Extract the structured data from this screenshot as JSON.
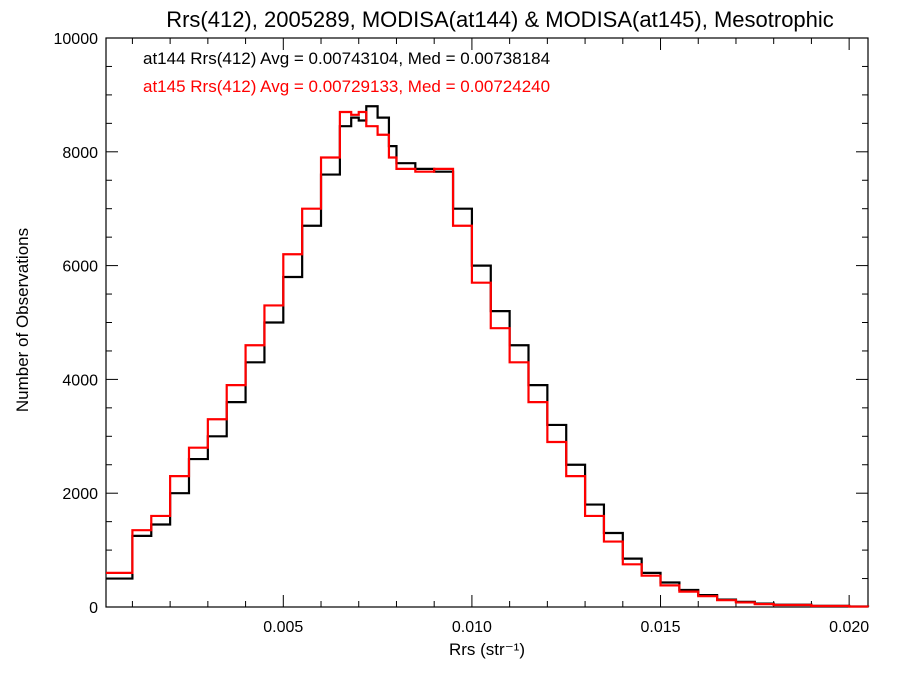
{
  "chart_data": {
    "type": "line",
    "step": true,
    "title": "Rrs(412), 2005289, MODISA(at144) & MODISA(at145), Mesotrophic",
    "xlabel": "Rrs (str⁻¹)",
    "ylabel": "Number of Observations",
    "xlim": [
      0.0003,
      0.0205
    ],
    "ylim": [
      0,
      10000
    ],
    "x_ticks": [
      0.005,
      0.01,
      0.015,
      0.02
    ],
    "x_tick_labels": [
      "0.005",
      "0.010",
      "0.015",
      "0.020"
    ],
    "y_ticks": [
      0,
      2000,
      4000,
      6000,
      8000,
      10000
    ],
    "y_tick_labels": [
      "0",
      "2000",
      "4000",
      "6000",
      "8000",
      "10000"
    ],
    "grid": false,
    "legend_position": "top-left",
    "annotations": [
      {
        "text": "at144 Rrs(412) Avg = 0.00743104, Med = 0.00738184",
        "color": "#000000"
      },
      {
        "text": "at145 Rrs(412) Avg = 0.00729133, Med = 0.00724240",
        "color": "#ff0000"
      }
    ],
    "series": [
      {
        "color": "#000000",
        "x": [
          0.0003,
          0.001,
          0.0015,
          0.002,
          0.0025,
          0.003,
          0.0035,
          0.004,
          0.0045,
          0.005,
          0.0055,
          0.006,
          0.0065,
          0.0068,
          0.007,
          0.0072,
          0.0075,
          0.0078,
          0.008,
          0.0085,
          0.009,
          0.0095,
          0.01,
          0.0105,
          0.011,
          0.0115,
          0.012,
          0.0125,
          0.013,
          0.0135,
          0.014,
          0.0145,
          0.015,
          0.0155,
          0.016,
          0.0165,
          0.017,
          0.0175,
          0.018,
          0.019,
          0.02,
          0.0205
        ],
        "y": [
          500,
          1250,
          1450,
          2000,
          2600,
          3000,
          3600,
          4300,
          5000,
          5800,
          6700,
          7600,
          8450,
          8600,
          8550,
          8800,
          8600,
          8100,
          7800,
          7700,
          7650,
          7000,
          6000,
          5200,
          4600,
          3900,
          3200,
          2500,
          1800,
          1300,
          850,
          600,
          430,
          300,
          210,
          130,
          90,
          60,
          40,
          20,
          10,
          5
        ]
      },
      {
        "color": "#ff0000",
        "x": [
          0.0003,
          0.001,
          0.0015,
          0.002,
          0.0025,
          0.003,
          0.0035,
          0.004,
          0.0045,
          0.005,
          0.0055,
          0.006,
          0.0065,
          0.0068,
          0.007,
          0.0072,
          0.0075,
          0.0078,
          0.008,
          0.0085,
          0.009,
          0.0095,
          0.01,
          0.0105,
          0.011,
          0.0115,
          0.012,
          0.0125,
          0.013,
          0.0135,
          0.014,
          0.0145,
          0.015,
          0.0155,
          0.016,
          0.0165,
          0.017,
          0.0175,
          0.018,
          0.019,
          0.02,
          0.0205
        ],
        "y": [
          600,
          1350,
          1600,
          2300,
          2800,
          3300,
          3900,
          4600,
          5300,
          6200,
          7000,
          7900,
          8700,
          8650,
          8700,
          8450,
          8300,
          7900,
          7700,
          7650,
          7700,
          6700,
          5700,
          4900,
          4300,
          3600,
          2900,
          2300,
          1600,
          1150,
          750,
          550,
          380,
          270,
          190,
          120,
          80,
          50,
          35,
          18,
          8,
          4
        ]
      }
    ]
  }
}
